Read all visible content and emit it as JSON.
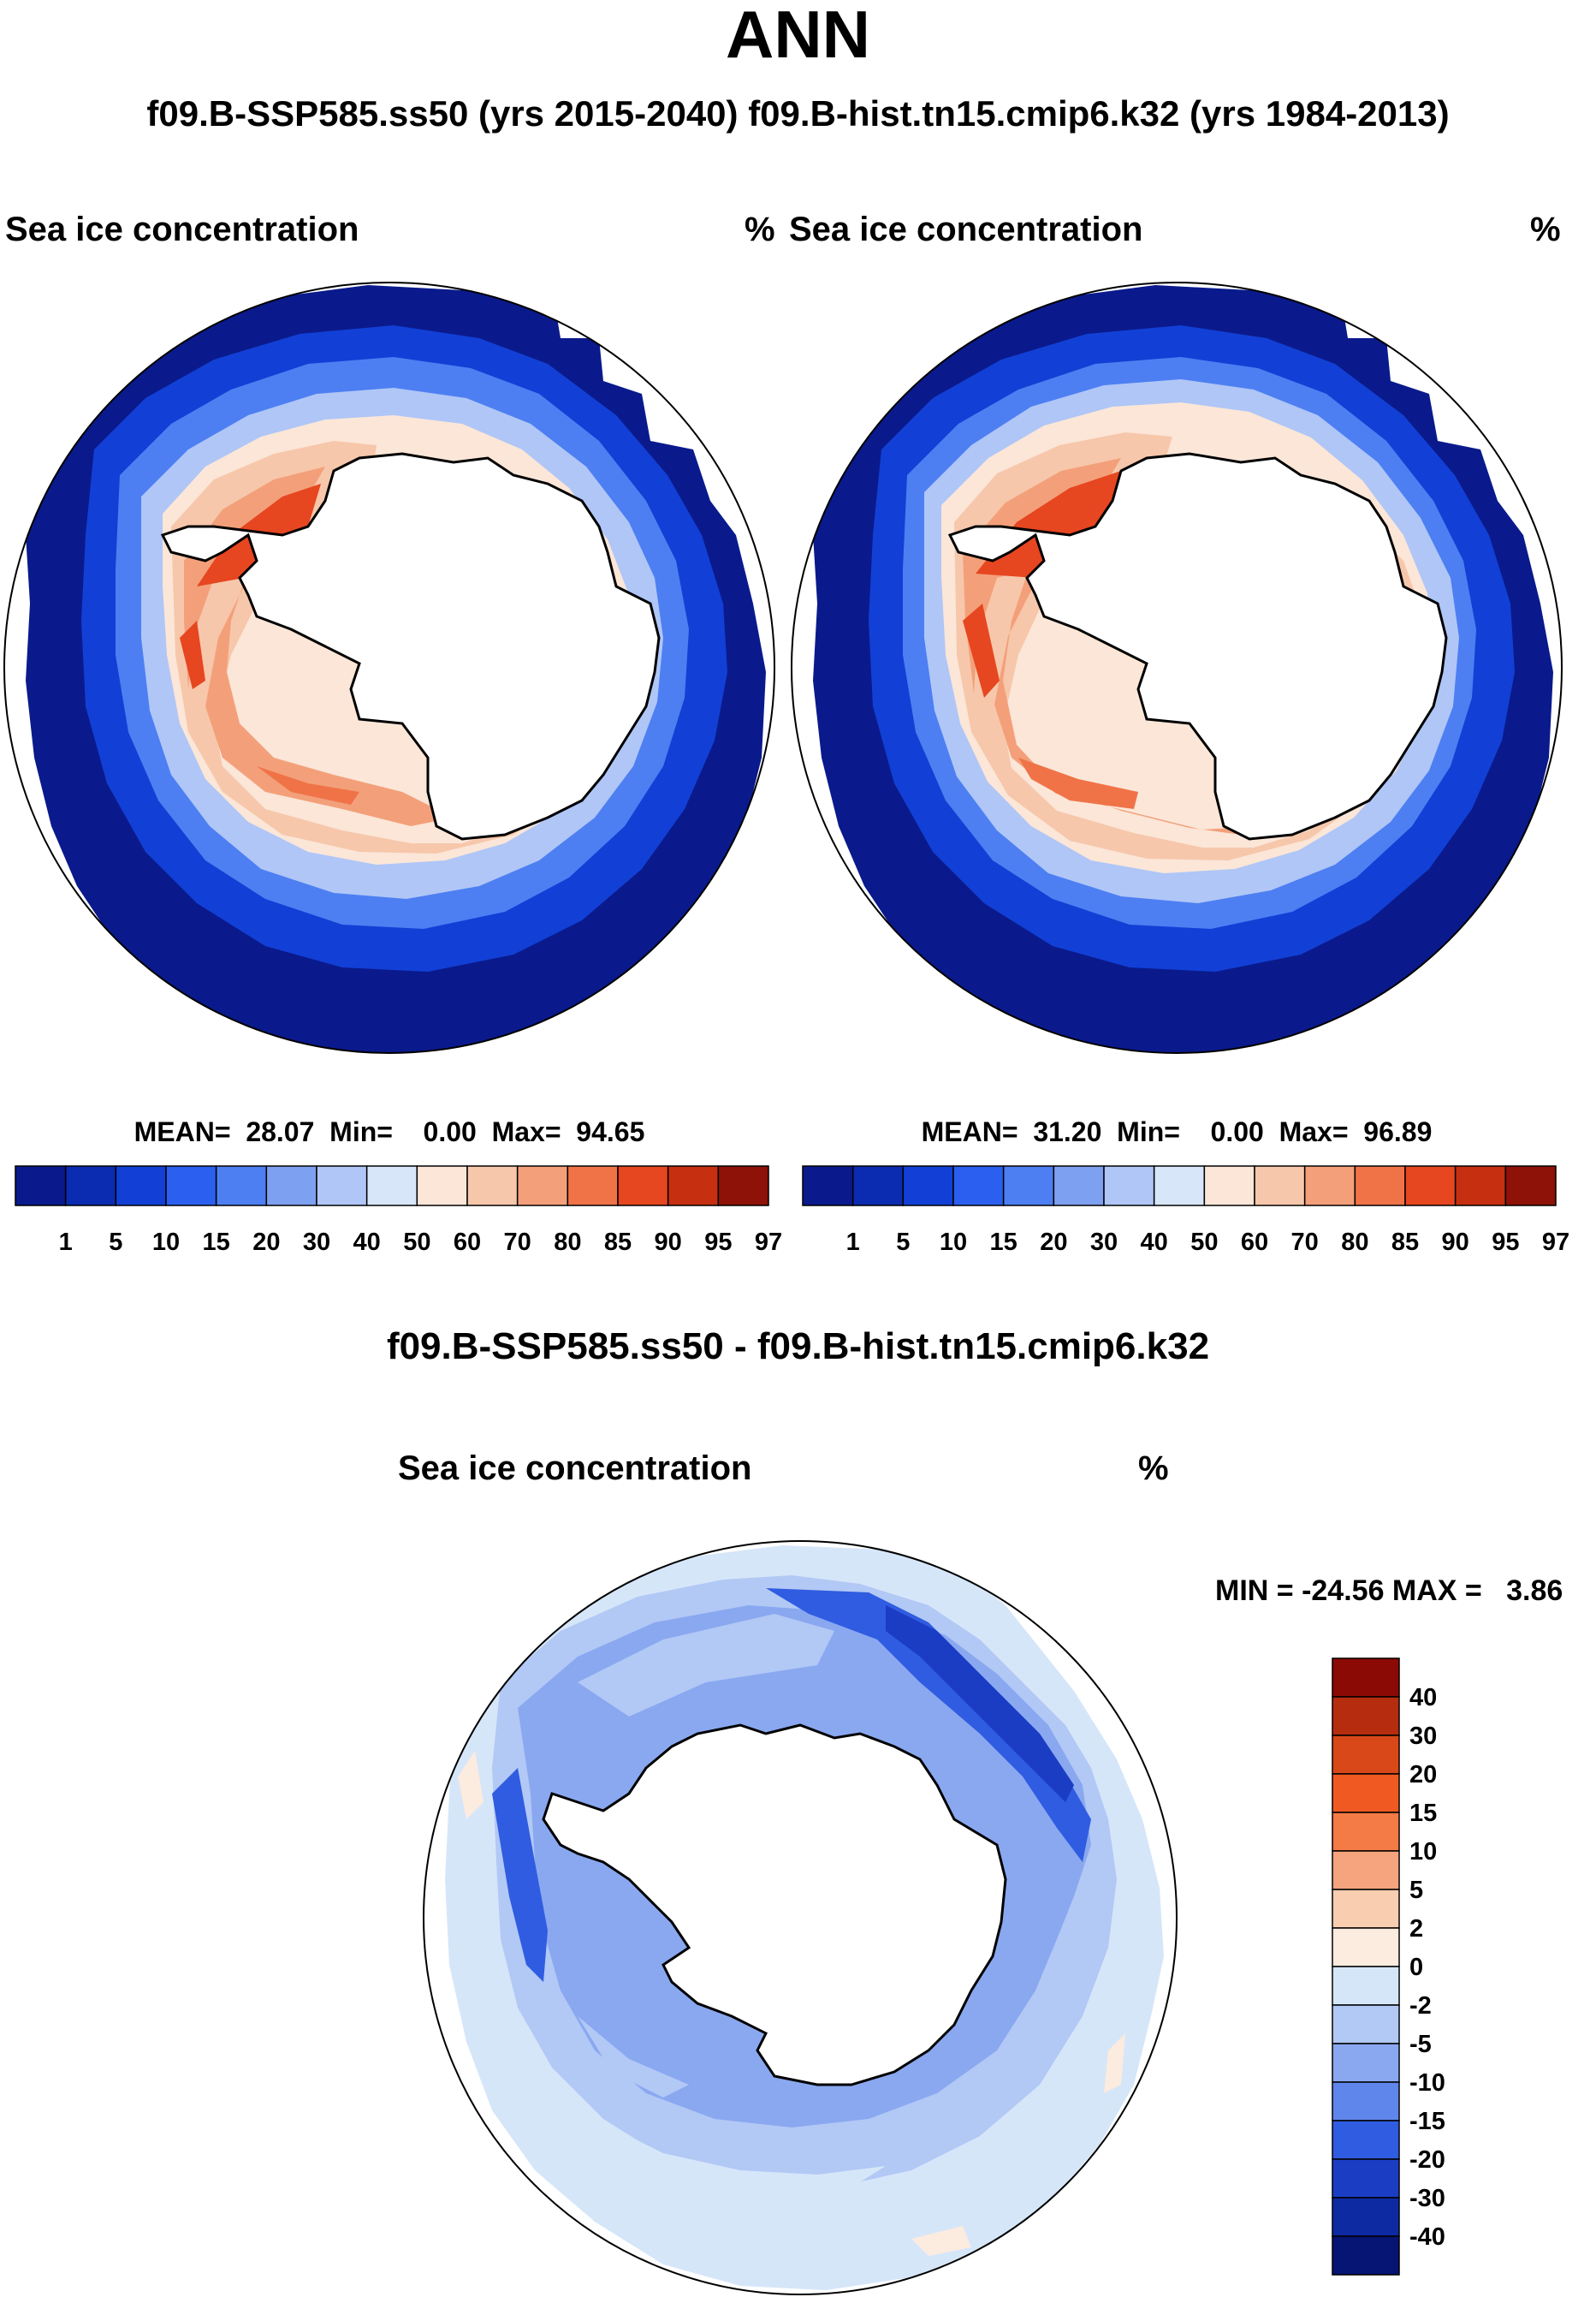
{
  "title": "ANN",
  "subtitle": "f09.B-SSP585.ss50 (yrs 2015-2040)  f09.B-hist.tn15.cmip6.k32 (yrs 1984-2013)",
  "panels": [
    {
      "variable": "Sea ice concentration",
      "units": "%",
      "stats": "MEAN=  28.07  Min=    0.00  Max=  94.65"
    },
    {
      "variable": "Sea ice concentration",
      "units": "%",
      "stats": "MEAN=  31.20  Min=    0.00  Max=  96.89"
    }
  ],
  "diff": {
    "title": "f09.B-SSP585.ss50 - f09.B-hist.tn15.cmip6.k32",
    "variable": "Sea ice concentration",
    "units": "%",
    "stats": "MIN = -24.56 MAX =   3.86"
  },
  "colorbar_main": {
    "labels": [
      "1",
      "5",
      "10",
      "15",
      "20",
      "30",
      "40",
      "50",
      "60",
      "70",
      "80",
      "85",
      "90",
      "95",
      "97"
    ],
    "colors": [
      "#0a1a8c",
      "#0b2bb0",
      "#1240d6",
      "#2a5ff0",
      "#4d7ff2",
      "#7ea0f0",
      "#afc6f7",
      "#d8e6f9",
      "#fbe6d8",
      "#f7c7ab",
      "#f3a07a",
      "#f07347",
      "#e64620",
      "#c62f10",
      "#8e1208"
    ]
  },
  "colorbar_diff": {
    "labels": [
      "40",
      "30",
      "20",
      "15",
      "10",
      "5",
      "2",
      "0",
      "-2",
      "-5",
      "-10",
      "-15",
      "-20",
      "-30",
      "-40"
    ],
    "colors": [
      "#8b0a05",
      "#b52c0e",
      "#d94818",
      "#f05a22",
      "#f47a46",
      "#f5a47d",
      "#f8cdb0",
      "#fcebdf",
      "#d6e6f9",
      "#b2c8f5",
      "#8aa8f0",
      "#5f86eb",
      "#2f5ce0",
      "#1a3dc4",
      "#0e2aa3",
      "#061473"
    ]
  }
}
